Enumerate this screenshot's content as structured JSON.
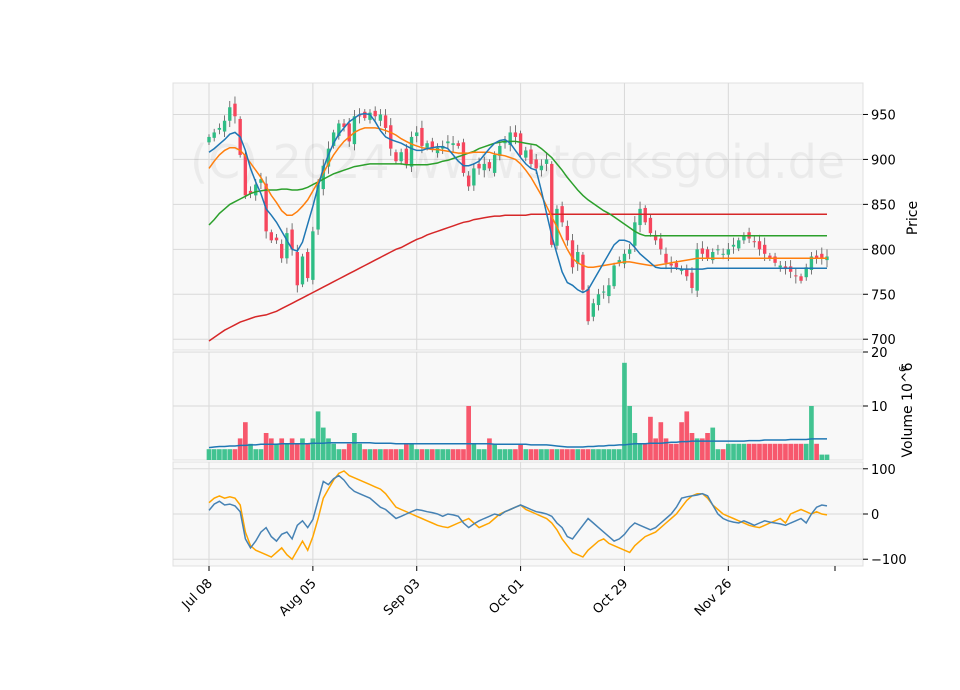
{
  "chart_data": {
    "type": "candlestick",
    "watermark": "(C) 2024 www.stocksgoid.de",
    "colors": {
      "up": "#2ebd85",
      "down": "#f6465d",
      "ma_short": "#1f77b4",
      "ma_mid": "#ff7f0e",
      "ma_long": "#2ca02c",
      "ma_200": "#d62728",
      "vol_ma": "#1f77b4",
      "osc_a": "#4682b4",
      "osc_b": "#ffa500",
      "panel_bg": "#f8f8f8",
      "grid": "#d9d9d9"
    },
    "x_ticks": [
      {
        "label": "Jul 08",
        "index": 0
      },
      {
        "label": "Aug 05",
        "index": 20
      },
      {
        "label": "Sep 03",
        "index": 40
      },
      {
        "label": "Oct 01",
        "index": 60
      },
      {
        "label": "Oct 29",
        "index": 80
      },
      {
        "label": "Nov 26",
        "index": 100
      }
    ],
    "n_bars": 120,
    "price": {
      "ylabel": "Price",
      "ylim": [
        688,
        985
      ],
      "yticks": [
        700,
        750,
        800,
        850,
        900,
        950
      ],
      "closes": [
        925,
        930,
        935,
        943,
        958,
        948,
        905,
        860,
        862,
        872,
        878,
        820,
        810,
        810,
        790,
        818,
        800,
        760,
        792,
        768,
        820,
        872,
        893,
        912,
        930,
        940,
        936,
        920,
        948,
        948,
        946,
        952,
        948,
        950,
        935,
        912,
        898,
        908,
        895,
        925,
        930,
        915,
        918,
        912,
        913,
        915,
        920,
        918,
        915,
        885,
        870,
        890,
        890,
        895,
        890,
        905,
        915,
        920,
        930,
        925,
        905,
        910,
        895,
        890,
        893,
        900,
        805,
        845,
        830,
        810,
        780,
        797,
        755,
        720,
        740,
        750,
        753,
        760,
        782,
        788,
        795,
        800,
        830,
        845,
        830,
        818,
        810,
        800,
        785,
        782,
        780,
        778,
        770,
        757,
        800,
        795,
        790,
        797,
        800,
        795,
        800,
        805,
        810,
        815,
        812,
        808,
        800,
        795,
        790,
        785,
        782,
        778,
        775,
        770,
        765,
        780,
        792,
        790,
        790,
        792
      ],
      "ma_short": [
        908,
        912,
        917,
        922,
        928,
        930,
        925,
        910,
        890,
        875,
        862,
        845,
        838,
        830,
        820,
        810,
        800,
        798,
        808,
        828,
        848,
        870,
        890,
        905,
        918,
        928,
        935,
        942,
        946,
        950,
        951,
        950,
        942,
        932,
        925,
        922,
        920,
        918,
        915,
        912,
        910,
        910,
        912,
        913,
        914,
        914,
        912,
        905,
        898,
        893,
        893,
        895,
        898,
        905,
        912,
        918,
        921,
        922,
        918,
        910,
        902,
        895,
        890,
        888,
        865,
        840,
        815,
        795,
        775,
        763,
        760,
        755,
        752,
        755,
        765,
        775,
        785,
        795,
        805,
        810,
        810,
        808,
        802,
        795,
        790,
        785,
        780,
        779,
        779,
        779,
        779,
        778,
        778,
        778,
        778,
        778,
        779,
        779,
        779,
        779,
        779,
        779,
        779,
        779,
        779,
        779,
        779,
        779,
        779,
        779,
        779,
        779,
        779,
        779,
        779,
        779,
        779,
        779,
        779,
        779
      ],
      "ma_mid": [
        890,
        898,
        905,
        910,
        913,
        913,
        910,
        904,
        896,
        888,
        880,
        870,
        860,
        852,
        843,
        838,
        838,
        842,
        848,
        855,
        865,
        875,
        885,
        895,
        905,
        913,
        920,
        925,
        930,
        933,
        935,
        935,
        935,
        934,
        932,
        930,
        927,
        923,
        920,
        917,
        915,
        913,
        912,
        911,
        911,
        910,
        909,
        908,
        907,
        907,
        907,
        908,
        908,
        908,
        908,
        906,
        905,
        904,
        902,
        900,
        895,
        888,
        880,
        870,
        860,
        848,
        836,
        825,
        812,
        800,
        790,
        785,
        782,
        780,
        780,
        781,
        782,
        783,
        784,
        785,
        786,
        786,
        785,
        784,
        783,
        782,
        782,
        783,
        784,
        785,
        786,
        787,
        788,
        789,
        790,
        790,
        790,
        790,
        790,
        790,
        790,
        790,
        790,
        790,
        790,
        790,
        790,
        790,
        790,
        790,
        790,
        790,
        790,
        790,
        790,
        790,
        790,
        790,
        790,
        790
      ],
      "ma_long": [
        827,
        833,
        840,
        845,
        850,
        853,
        856,
        859,
        862,
        864,
        865,
        866,
        866,
        866,
        867,
        867,
        866,
        866,
        867,
        869,
        872,
        875,
        878,
        881,
        884,
        886,
        888,
        890,
        892,
        893,
        894,
        895,
        895,
        895,
        895,
        895,
        895,
        895,
        894,
        894,
        894,
        894,
        894,
        895,
        896,
        898,
        899,
        901,
        903,
        905,
        907,
        909,
        912,
        914,
        916,
        918,
        919,
        920,
        920,
        920,
        919,
        918,
        917,
        916,
        912,
        907,
        902,
        895,
        888,
        880,
        873,
        866,
        860,
        855,
        851,
        847,
        843,
        840,
        836,
        832,
        828,
        824,
        820,
        817,
        815,
        815,
        815,
        815,
        815,
        815,
        815,
        815,
        815,
        815,
        815,
        815,
        815,
        815,
        815,
        815,
        815,
        815,
        815,
        815,
        815,
        815,
        815,
        815,
        815,
        815,
        815,
        815,
        815,
        815,
        815,
        815,
        815,
        815,
        815,
        815
      ],
      "ma_200": [
        698,
        702,
        706,
        710,
        713,
        716,
        719,
        721,
        723,
        725,
        726,
        727,
        729,
        731,
        734,
        737,
        740,
        743,
        746,
        749,
        752,
        755,
        758,
        761,
        764,
        767,
        770,
        773,
        776,
        779,
        782,
        785,
        788,
        791,
        794,
        797,
        800,
        802,
        805,
        808,
        811,
        813,
        816,
        818,
        820,
        822,
        824,
        826,
        828,
        830,
        831,
        833,
        834,
        835,
        836,
        837,
        837,
        838,
        838,
        838,
        838,
        838,
        839,
        839,
        839,
        839,
        839,
        839,
        839,
        839,
        839,
        839,
        839,
        839,
        839,
        839,
        839,
        839,
        839,
        839,
        839,
        839,
        839,
        839,
        839,
        839,
        839,
        839,
        839,
        839,
        839,
        839,
        839,
        839,
        839,
        839,
        839,
        839,
        839,
        839,
        839,
        839,
        839,
        839,
        839,
        839,
        839,
        839,
        839,
        839,
        839,
        839,
        839,
        839,
        839,
        839,
        839,
        839,
        839,
        839
      ]
    },
    "volume": {
      "ylabel": "Volume  10^6",
      "ylim": [
        0,
        20
      ],
      "yticks": [
        10,
        20
      ],
      "bars": [
        2,
        2,
        2,
        2,
        2,
        2,
        4,
        7,
        3,
        2,
        2,
        5,
        4,
        3,
        4,
        3,
        4,
        3,
        4,
        3,
        4,
        9,
        6,
        4,
        3,
        2,
        2,
        3,
        5,
        3,
        2,
        2,
        2,
        2,
        2,
        2,
        2,
        2,
        3,
        3,
        2,
        2,
        2,
        2,
        2,
        2,
        2,
        2,
        2,
        2,
        10,
        3,
        2,
        2,
        4,
        3,
        2,
        2,
        2,
        2,
        3,
        2,
        2,
        2,
        2,
        2,
        2,
        2,
        2,
        2,
        2,
        2,
        2,
        2,
        2,
        2,
        2,
        2,
        2,
        2,
        18,
        10,
        5,
        3,
        3,
        8,
        4,
        7,
        4,
        3,
        3,
        7,
        9,
        5,
        4,
        4,
        5,
        6,
        2,
        2,
        3,
        3,
        3,
        3,
        3,
        3,
        3,
        3,
        3,
        3,
        3,
        3,
        3,
        3,
        3,
        3,
        10,
        3,
        1,
        1
      ],
      "vol_ma": [
        2.3,
        2.4,
        2.5,
        2.5,
        2.6,
        2.6,
        2.7,
        2.7,
        2.8,
        2.8,
        2.9,
        2.9,
        2.9,
        2.9,
        3.0,
        3.0,
        3.0,
        3.0,
        3.0,
        3.0,
        3.1,
        3.1,
        3.1,
        3.2,
        3.2,
        3.2,
        3.2,
        3.2,
        3.2,
        3.2,
        3.2,
        3.2,
        3.1,
        3.1,
        3.1,
        3.1,
        3.0,
        3.0,
        3.0,
        3.0,
        3.0,
        3.0,
        3.0,
        3.0,
        3.0,
        3.0,
        3.0,
        3.0,
        3.0,
        3.0,
        3.0,
        3.0,
        3.0,
        3.0,
        3.0,
        2.9,
        2.9,
        2.9,
        2.9,
        2.9,
        2.9,
        2.9,
        2.8,
        2.8,
        2.8,
        2.8,
        2.7,
        2.6,
        2.5,
        2.4,
        2.4,
        2.4,
        2.4,
        2.5,
        2.5,
        2.6,
        2.6,
        2.7,
        2.7,
        2.8,
        2.8,
        2.9,
        3.0,
        3.0,
        3.0,
        3.1,
        3.1,
        3.1,
        3.2,
        3.3,
        3.3,
        3.4,
        3.4,
        3.5,
        3.5,
        3.5,
        3.5,
        3.5,
        3.5,
        3.5,
        3.5,
        3.5,
        3.5,
        3.5,
        3.6,
        3.6,
        3.6,
        3.7,
        3.7,
        3.7,
        3.7,
        3.7,
        3.8,
        3.8,
        3.8,
        3.8,
        3.9,
        3.9,
        3.9,
        3.9
      ]
    },
    "oscillator": {
      "ylim": [
        -115,
        115
      ],
      "yticks": [
        -100,
        0,
        100
      ],
      "line_a": [
        8,
        22,
        28,
        20,
        22,
        18,
        5,
        -55,
        -75,
        -60,
        -40,
        -30,
        -50,
        -60,
        -45,
        -40,
        -55,
        -25,
        -15,
        -30,
        -12,
        30,
        72,
        65,
        78,
        85,
        75,
        60,
        50,
        45,
        40,
        35,
        25,
        15,
        10,
        0,
        -10,
        -5,
        0,
        5,
        10,
        8,
        5,
        3,
        0,
        -5,
        0,
        -2,
        -5,
        -20,
        -30,
        -22,
        -15,
        -10,
        -5,
        0,
        -3,
        5,
        10,
        15,
        20,
        15,
        10,
        5,
        3,
        0,
        -5,
        -20,
        -30,
        -50,
        -55,
        -40,
        -25,
        -10,
        -20,
        -30,
        -40,
        -50,
        -60,
        -55,
        -45,
        -30,
        -20,
        -25,
        -30,
        -35,
        -30,
        -20,
        -10,
        0,
        15,
        35,
        38,
        40,
        42,
        45,
        40,
        20,
        0,
        -10,
        -15,
        -18,
        -20,
        -15,
        -20,
        -25,
        -20,
        -15,
        -18,
        -20,
        -22,
        -25,
        -20,
        -15,
        -10,
        -20,
        0,
        15,
        20,
        18
      ],
      "line_b": [
        25,
        35,
        40,
        35,
        38,
        35,
        20,
        -40,
        -70,
        -80,
        -85,
        -90,
        -95,
        -85,
        -75,
        -90,
        -100,
        -80,
        -60,
        -80,
        -50,
        -10,
        35,
        55,
        75,
        90,
        95,
        85,
        80,
        75,
        70,
        65,
        60,
        55,
        45,
        30,
        15,
        10,
        5,
        0,
        -5,
        -10,
        -15,
        -20,
        -25,
        -28,
        -30,
        -25,
        -20,
        -15,
        -10,
        -20,
        -30,
        -25,
        -20,
        -10,
        0,
        5,
        10,
        15,
        20,
        10,
        5,
        0,
        -5,
        -10,
        -20,
        -35,
        -55,
        -70,
        -85,
        -90,
        -95,
        -80,
        -70,
        -60,
        -55,
        -65,
        -70,
        -75,
        -80,
        -85,
        -70,
        -60,
        -50,
        -45,
        -40,
        -30,
        -20,
        -10,
        0,
        15,
        30,
        40,
        45,
        45,
        35,
        20,
        10,
        0,
        -5,
        -10,
        -15,
        -20,
        -25,
        -28,
        -30,
        -25,
        -20,
        -15,
        -10,
        -20,
        0,
        5,
        10,
        5,
        0,
        5,
        0,
        -2
      ]
    }
  }
}
